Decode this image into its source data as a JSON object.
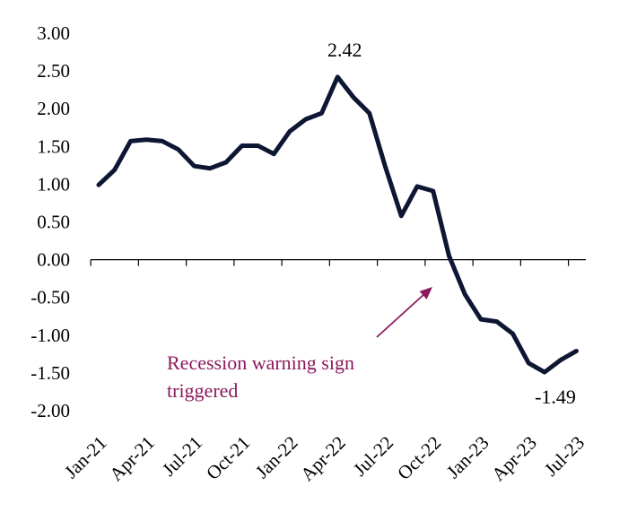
{
  "chart_data": {
    "type": "line",
    "title": "",
    "xlabel": "",
    "ylabel": "",
    "ylim": [
      -2.0,
      3.0
    ],
    "yticks": [
      "3.00",
      "2.50",
      "2.00",
      "1.50",
      "1.00",
      "0.50",
      "0.00",
      "-0.50",
      "-1.00",
      "-1.50",
      "-2.00"
    ],
    "ytick_values": [
      3.0,
      2.5,
      2.0,
      1.5,
      1.0,
      0.5,
      0.0,
      -0.5,
      -1.0,
      -1.5,
      -2.0
    ],
    "x": [
      "Jan-21",
      "Feb-21",
      "Mar-21",
      "Apr-21",
      "May-21",
      "Jun-21",
      "Jul-21",
      "Aug-21",
      "Sep-21",
      "Oct-21",
      "Nov-21",
      "Dec-21",
      "Jan-22",
      "Feb-22",
      "Mar-22",
      "Apr-22",
      "May-22",
      "Jun-22",
      "Jul-22",
      "Aug-22",
      "Sep-22",
      "Oct-22",
      "Nov-22",
      "Dec-22",
      "Jan-23",
      "Feb-23",
      "Mar-23",
      "Apr-23",
      "May-23",
      "Jun-23",
      "Jul-23"
    ],
    "xtick_labels": [
      "Jan-21",
      "Apr-21",
      "Jul-21",
      "Oct-21",
      "Jan-22",
      "Apr-22",
      "Jul-22",
      "Oct-22",
      "Jan-23",
      "Apr-23",
      "Jul-23"
    ],
    "series": [
      {
        "values": [
          0.99,
          1.19,
          1.57,
          1.59,
          1.57,
          1.46,
          1.24,
          1.21,
          1.29,
          1.51,
          1.51,
          1.4,
          1.7,
          1.86,
          1.94,
          2.42,
          2.15,
          1.94,
          1.23,
          0.58,
          0.97,
          0.91,
          0.05,
          -0.46,
          -0.79,
          -0.82,
          -0.98,
          -1.37,
          -1.49,
          -1.33,
          -1.21
        ],
        "color": "#0d1633"
      }
    ],
    "grid": false,
    "legend": "none",
    "annotations": {
      "peak_label": "2.42",
      "trough_label": "-1.49",
      "note_line1": "Recession warning sign",
      "note_line2": "triggered",
      "note_color": "#8b1a5c"
    }
  }
}
